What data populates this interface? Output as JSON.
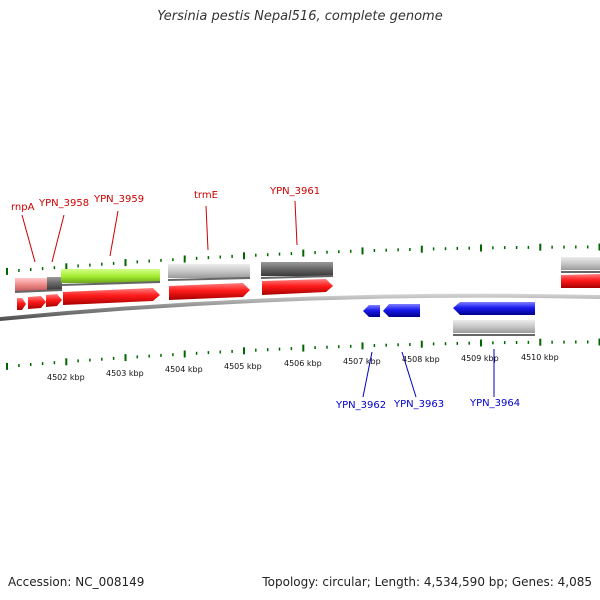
{
  "title": "Yersinia pestis Nepal516, complete genome",
  "footer": {
    "accession": "Accession: NC_008149",
    "stats": "Topology: circular; Length: 4,534,590 bp; Genes: 4,085"
  },
  "colors": {
    "forward_gene": "#ff1a1a",
    "reverse_gene": "#1a1aee",
    "rna": "#f08c8c",
    "cds_light": "#c8c8c8",
    "cds_dark": "#666666",
    "cds_green": "#a6ee33",
    "forward_label": "#cc0000",
    "reverse_label": "#0000cc",
    "tick": "#006600",
    "backbone": "#888888"
  },
  "scale_labels": [
    "4502 kbp",
    "4503 kbp",
    "4504 kbp",
    "4505 kbp",
    "4506 kbp",
    "4507 kbp",
    "4508 kbp",
    "4509 kbp",
    "4510 kbp"
  ],
  "forward_labels": [
    "rnpA",
    "YPN_3958",
    "YPN_3959",
    "trmE",
    "YPN_3961"
  ],
  "reverse_labels": [
    "YPN_3962",
    "YPN_3963",
    "YPN_3964"
  ]
}
